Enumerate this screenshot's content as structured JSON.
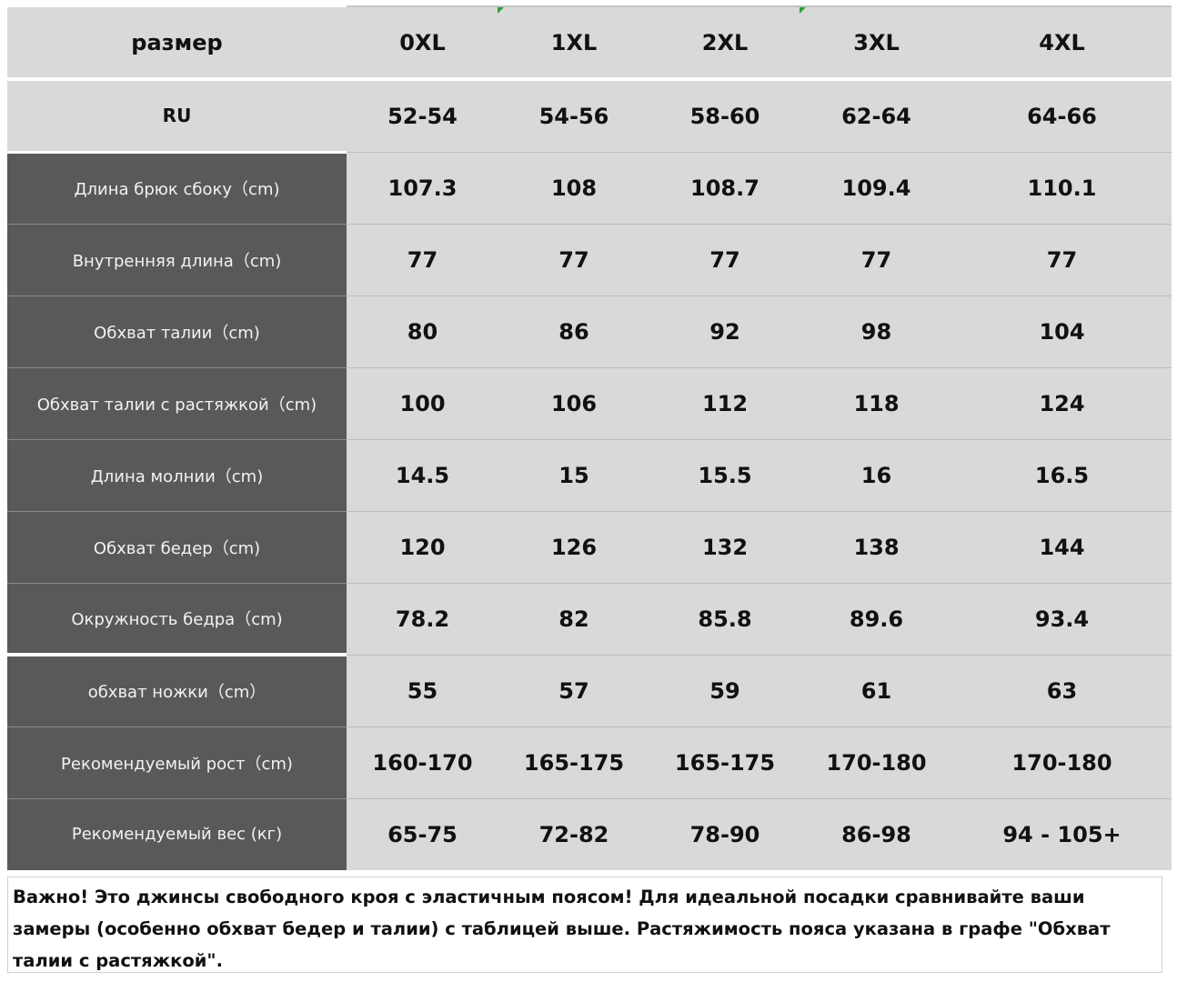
{
  "table": {
    "header": {
      "label": "размер",
      "sizes": [
        "0XL",
        "1XL",
        "2XL",
        "3XL",
        "4XL"
      ]
    },
    "ru_row": {
      "label": "RU",
      "values": [
        "52-54",
        "54-56",
        "58-60",
        "62-64",
        "64-66"
      ]
    },
    "rows": [
      {
        "label": "Длина брюк сбоку（cm)",
        "values": [
          "107.3",
          "108",
          "108.7",
          "109.4",
          "110.1"
        ]
      },
      {
        "label": "Внутренняя длина（cm)",
        "values": [
          "77",
          "77",
          "77",
          "77",
          "77"
        ]
      },
      {
        "label": "Обхват талии（cm)",
        "values": [
          "80",
          "86",
          "92",
          "98",
          "104"
        ]
      },
      {
        "label": "Обхват талии с растяжкой（cm)",
        "values": [
          "100",
          "106",
          "112",
          "118",
          "124"
        ]
      },
      {
        "label": "Длина молнии（cm)",
        "values": [
          "14.5",
          "15",
          "15.5",
          "16",
          "16.5"
        ]
      },
      {
        "label": "Обхват бедер（cm)",
        "values": [
          "120",
          "126",
          "132",
          "138",
          "144"
        ]
      },
      {
        "label": "Окружность бедра（cm)",
        "values": [
          "78.2",
          "82",
          "85.8",
          "89.6",
          "93.4"
        ]
      },
      {
        "label": "обхват ножки（cm）",
        "values": [
          "55",
          "57",
          "59",
          "61",
          "63"
        ]
      },
      {
        "label": "Рекомендуемый рост（cm)",
        "values": [
          "160-170",
          "165-175",
          "165-175",
          "170-180",
          "170-180"
        ]
      },
      {
        "label": "Рекомендуемый вес (кг)",
        "values": [
          "65-75",
          "72-82",
          "78-90",
          "86-98",
          "94 - 105+"
        ]
      }
    ]
  },
  "note": {
    "text": "Важно! Это джинсы свободного кроя с эластичным поясом! Для идеальной посадки сравнивайте ваши замеры (особенно обхват бедер и талии) с таблицей выше. Растяжимость пояса указана в графе \"Обхват талии с растяжкой\"."
  },
  "colors": {
    "label_background": "#595959",
    "cell_background": "#d9d9d9",
    "label_text": "#f2f2f2",
    "value_text": "#111111",
    "corner_marker": "#2e9e3a"
  }
}
